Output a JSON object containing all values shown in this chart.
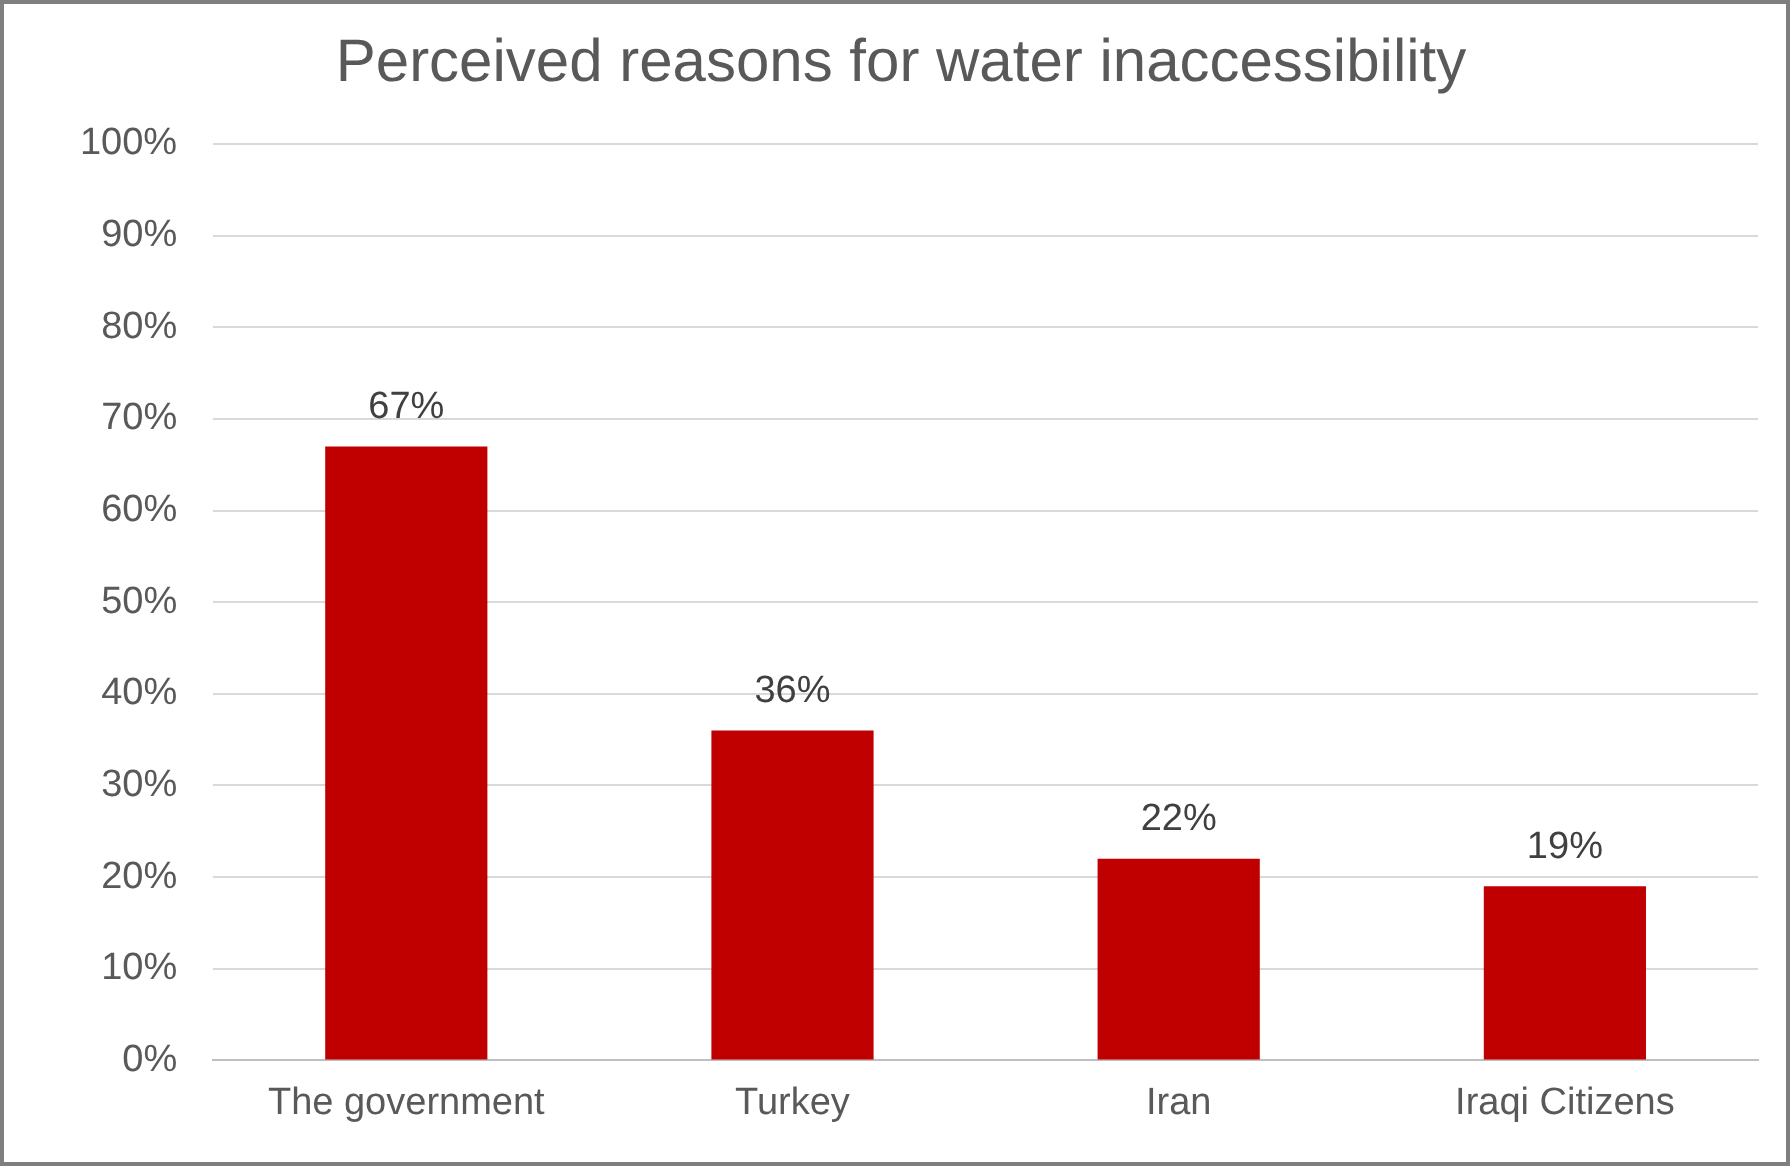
{
  "chart_data": {
    "type": "bar",
    "title": "Perceived reasons for water inaccessibility",
    "categories": [
      "The government",
      "Turkey",
      "Iran",
      "Iraqi Citizens"
    ],
    "values": [
      67,
      36,
      22,
      19
    ],
    "color": "#c00000",
    "value_labels": [
      "67%",
      "36%",
      "22%",
      "19%"
    ],
    "ylim": [
      0,
      100
    ],
    "yticks": [
      {
        "value": 0,
        "label": "0%"
      },
      {
        "value": 10,
        "label": "10%"
      },
      {
        "value": 20,
        "label": "20%"
      },
      {
        "value": 30,
        "label": "30%"
      },
      {
        "value": 40,
        "label": "40%"
      },
      {
        "value": 50,
        "label": "50%"
      },
      {
        "value": 60,
        "label": "60%"
      },
      {
        "value": 70,
        "label": "70%"
      },
      {
        "value": 80,
        "label": "80%"
      },
      {
        "value": 90,
        "label": "90%"
      },
      {
        "value": 100,
        "label": "100%"
      }
    ],
    "grid": "y",
    "legend": false
  }
}
